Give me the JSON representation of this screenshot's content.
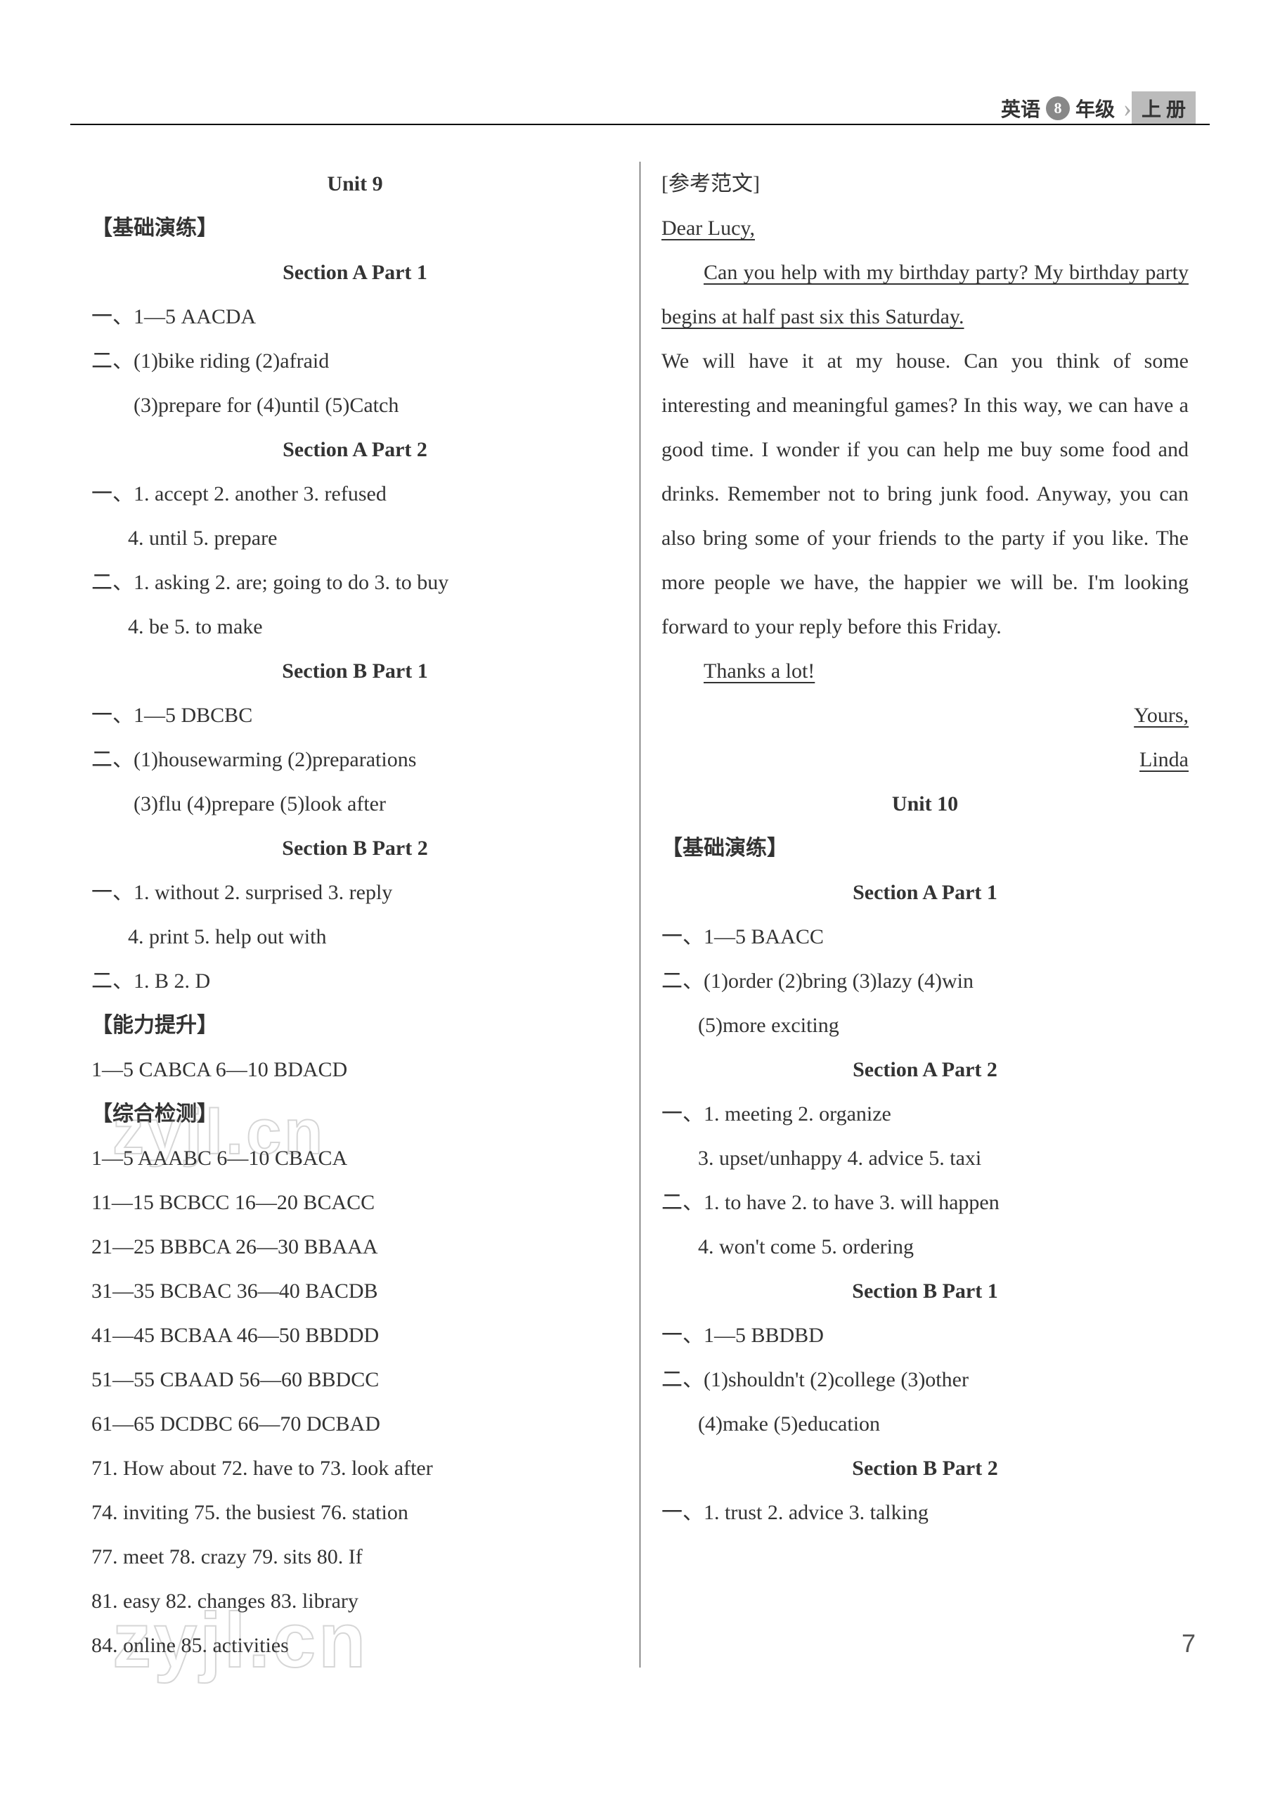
{
  "header": {
    "subject": "英语",
    "grade_num": "8",
    "grade_suffix": "年级",
    "volume": "上 册"
  },
  "left": {
    "unit_title": "Unit 9",
    "basic_practice": "【基础演练】",
    "sec_a1": "Section A   Part 1",
    "a1_line1": "一、1—5   AACDA",
    "a1_line2": "二、(1)bike riding   (2)afraid",
    "a1_line3": "(3)prepare for   (4)until   (5)Catch",
    "sec_a2": "Section A   Part 2",
    "a2_line1": "一、1. accept   2. another   3. refused",
    "a2_line2": "4. until   5. prepare",
    "a2_line3": "二、1. asking   2. are; going to do   3. to buy",
    "a2_line4": "4. be   5. to make",
    "sec_b1": "Section B   Part 1",
    "b1_line1": "一、1—5   DBCBC",
    "b1_line2": "二、(1)housewarming   (2)preparations",
    "b1_line3": "(3)flu   (4)prepare   (5)look after",
    "sec_b2": "Section B   Part 2",
    "b2_line1": "一、1. without   2. surprised   3. reply",
    "b2_line2": "4. print   5. help out with",
    "b2_line3": "二、1. B   2. D",
    "ability": "【能力提升】",
    "ability_line1": "1—5   CABCA   6—10   BDACD",
    "comprehensive": "【综合检测】",
    "c1": "1—5   AAABC   6—10   CBACA",
    "c2": "11—15   BCBCC   16—20   BCACC",
    "c3": "21—25   BBBCA   26—30   BBAAA",
    "c4": "31—35   BCBAC   36—40   BACDB",
    "c5": "41—45   BCBAA   46—50   BBDDD",
    "c6": "51—55   CBAAD  56—60   BBDCC",
    "c7": "61—65   DCDBC   66—70   DCBAD",
    "c8": "71. How about   72. have to   73. look after",
    "c9": "74. inviting   75. the busiest   76. station",
    "c10": "77. meet   78. crazy   79. sits   80. If",
    "c11": "81. easy   82. changes   83. library",
    "c12": "84. online   85. activities"
  },
  "right": {
    "ref_text": "[参考范文]",
    "dear": "Dear Lucy,",
    "essay_p1a": "Can you help with my birthday party? My birthday party begins at half past six this Saturday.",
    "essay_p1b": " We will have it at my house. Can you think of some interesting and meaningful games? In this way, we can have a good time. I wonder if you can help me buy some food and drinks. Remember not to bring junk food. Anyway, you can also bring some of your friends to the party if you like. The more people we have, the happier we will be. I'm looking forward to your reply before this Friday.",
    "thanks": "Thanks a lot!",
    "yours": "Yours,",
    "signature": "Linda",
    "unit_title": "Unit 10",
    "basic_practice": "【基础演练】",
    "sec_a1": "Section A   Part 1",
    "a1_line1": "一、1—5   BAACC",
    "a1_line2": "二、(1)order   (2)bring   (3)lazy   (4)win",
    "a1_line3": "(5)more exciting",
    "sec_a2": "Section A   Part 2",
    "a2_line1": "一、1. meeting   2. organize",
    "a2_line2": "3. upset/unhappy   4. advice   5. taxi",
    "a2_line3": "二、1. to have   2. to have   3. will happen",
    "a2_line4": "4. won't come   5. ordering",
    "sec_b1": "Section B   Part 1",
    "b1_line1": "一、1—5   BBDBD",
    "b1_line2": "二、(1)shouldn't   (2)college   (3)other",
    "b1_line3": "(4)make   (5)education",
    "sec_b2": "Section B   Part 2",
    "b2_line1": "一、1. trust   2. advice   3. talking"
  },
  "page_number": "7",
  "watermark": "zyjl.cn"
}
